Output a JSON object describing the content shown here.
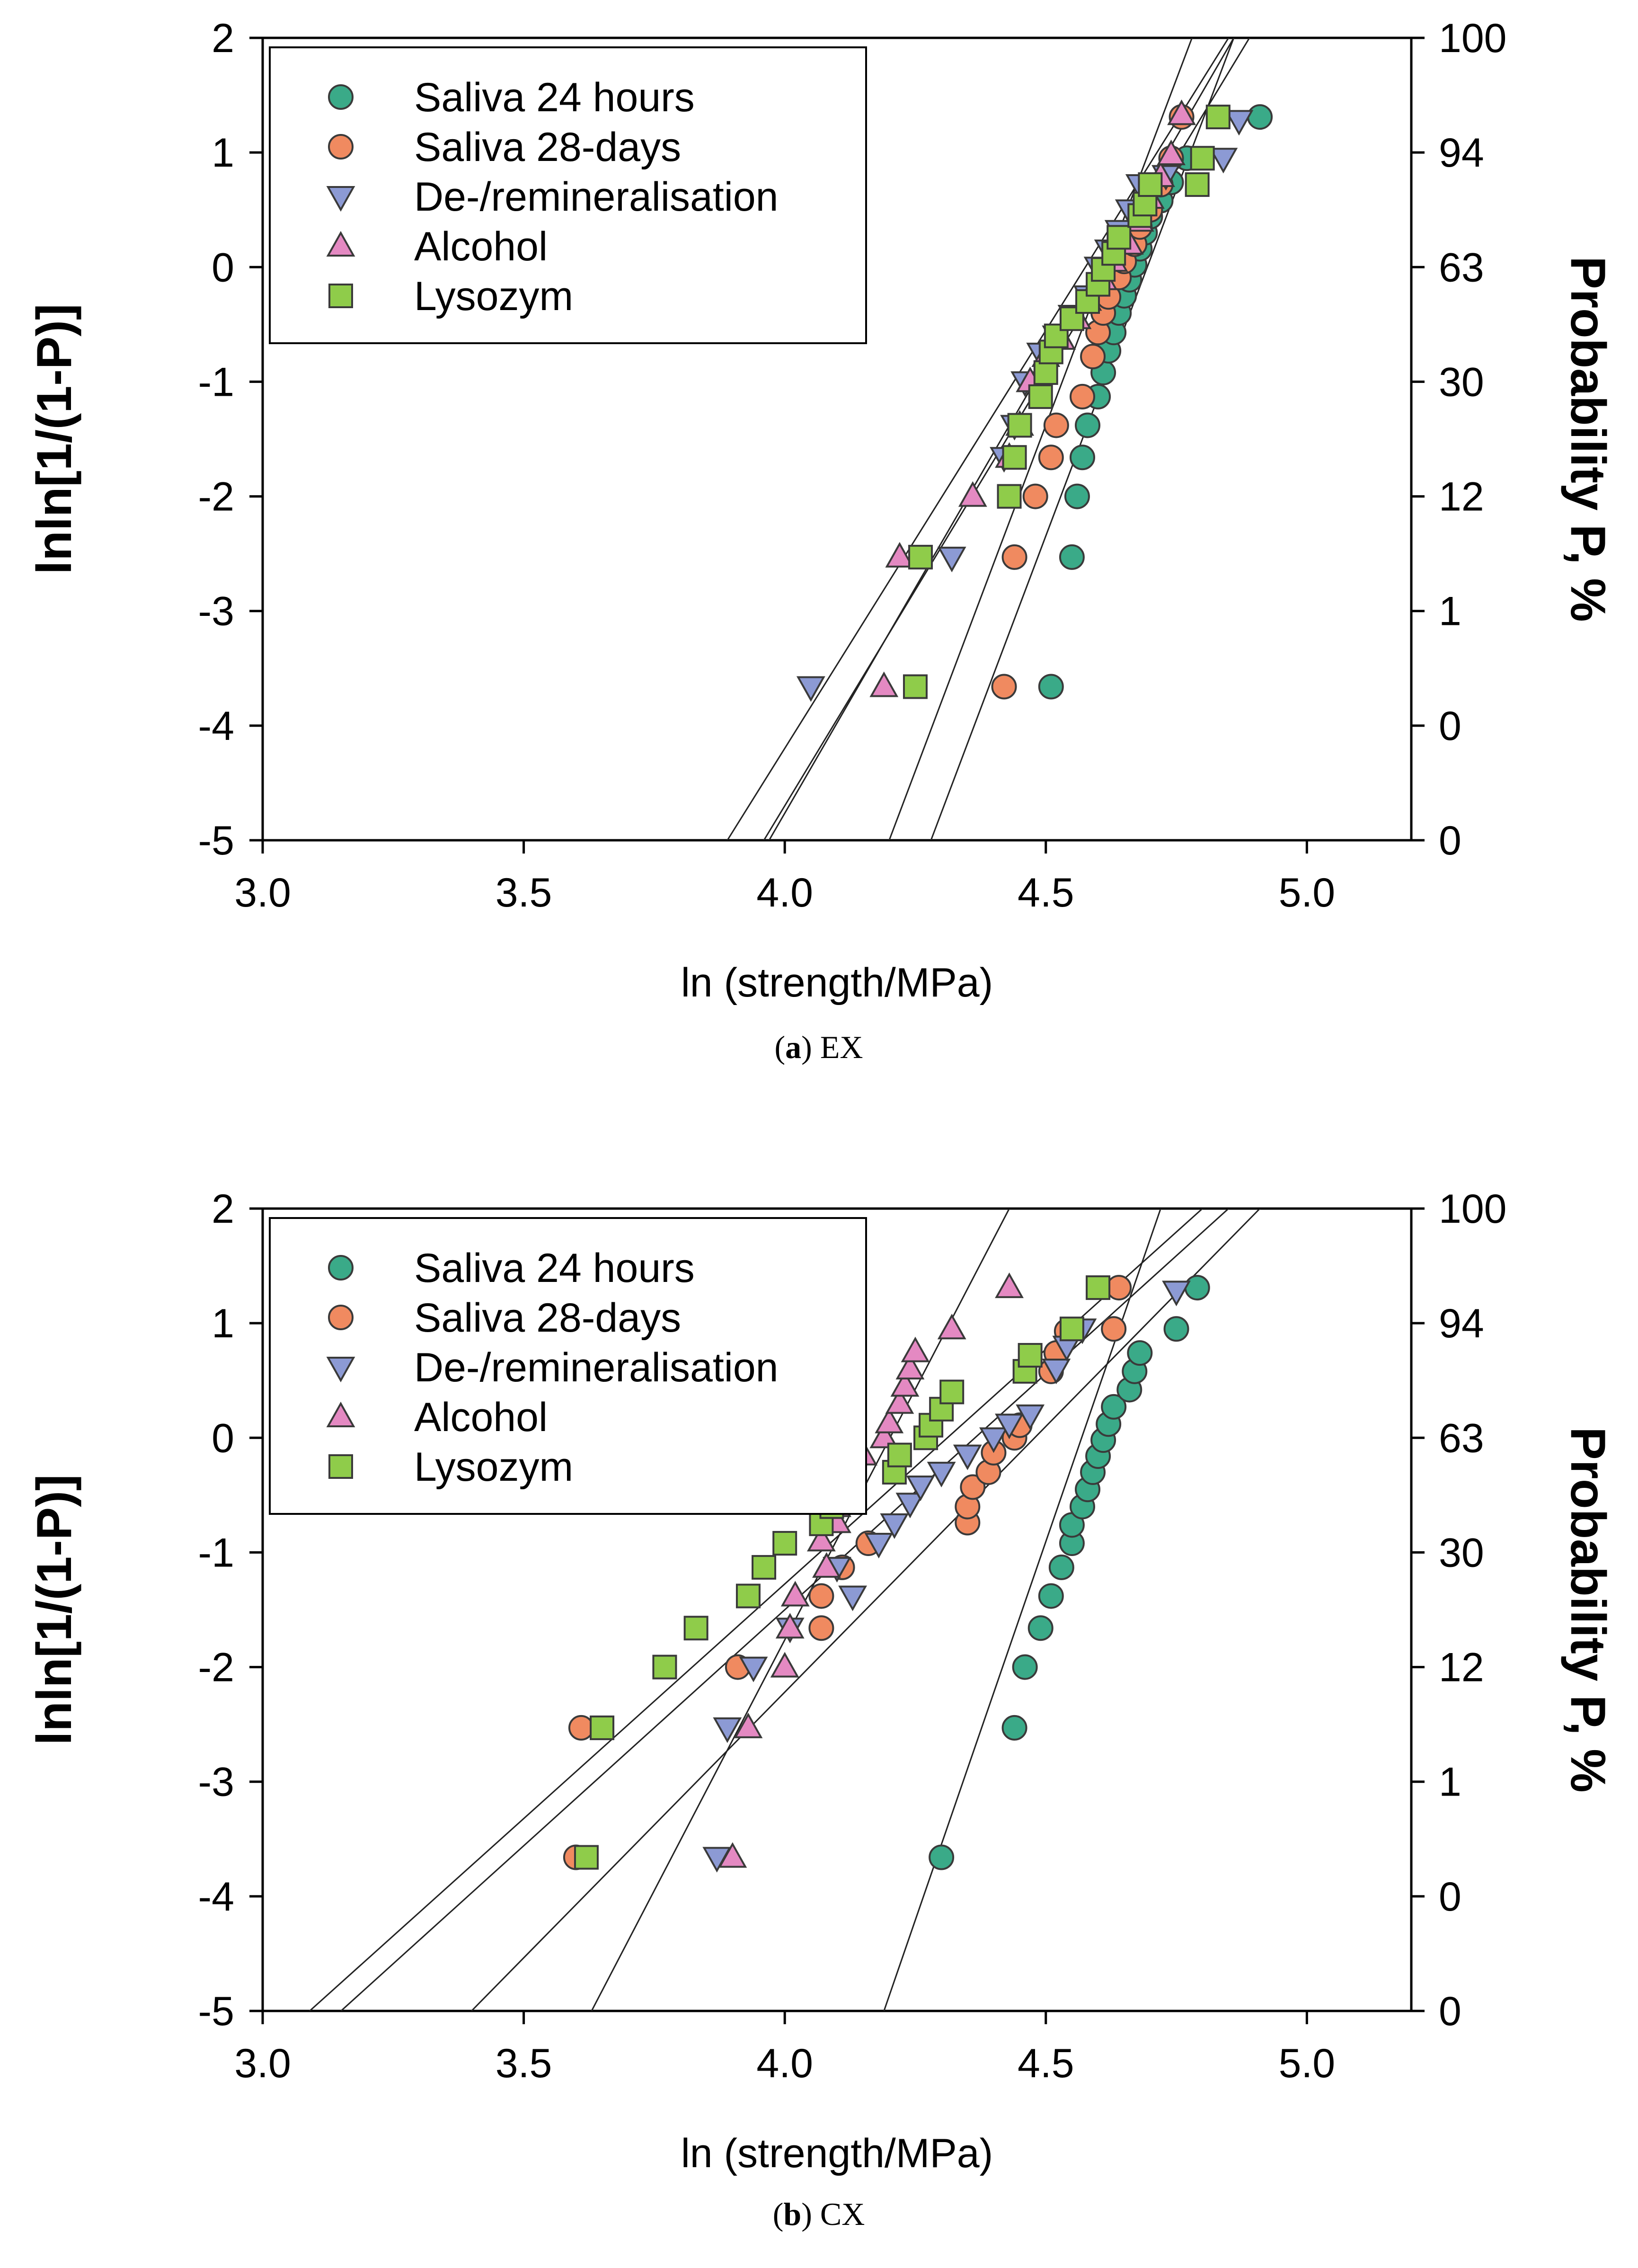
{
  "chart_data": [
    {
      "type": "scatter",
      "caption_letter": "a",
      "caption_text": "EX",
      "xlabel": "ln (strength/MPa)",
      "ylabel": "lnln[1/(1-P)]",
      "ylabel_right": "Probability P, %",
      "xlim": [
        3.0,
        5.2
      ],
      "ylim": [
        -5,
        2
      ],
      "xticks": [
        "3.0",
        "3.5",
        "4.0",
        "4.5",
        "5.0"
      ],
      "yticks": [
        "-5",
        "-4",
        "-3",
        "-2",
        "-1",
        "0",
        "1",
        "2"
      ],
      "right_ticks": [
        "0",
        "0",
        "1",
        "12",
        "30",
        "63",
        "94",
        "100"
      ],
      "legend_position": "top-left",
      "series": [
        {
          "name": "Saliva 24 hours",
          "marker": "circle",
          "color": "#3aaa88",
          "points": [
            [
              4.51,
              -3.66
            ],
            [
              4.55,
              -2.53
            ],
            [
              4.56,
              -2.0
            ],
            [
              4.57,
              -1.66
            ],
            [
              4.58,
              -1.38
            ],
            [
              4.6,
              -1.13
            ],
            [
              4.61,
              -0.92
            ],
            [
              4.62,
              -0.73
            ],
            [
              4.63,
              -0.57
            ],
            [
              4.64,
              -0.4
            ],
            [
              4.65,
              -0.25
            ],
            [
              4.66,
              -0.11
            ],
            [
              4.67,
              0.02
            ],
            [
              4.68,
              0.16
            ],
            [
              4.69,
              0.3
            ],
            [
              4.7,
              0.44
            ],
            [
              4.72,
              0.58
            ],
            [
              4.74,
              0.74
            ],
            [
              4.77,
              0.95
            ],
            [
              4.91,
              1.31
            ]
          ],
          "fit": [
            [
              4.28,
              -5.0
            ],
            [
              4.86,
              2.0
            ]
          ]
        },
        {
          "name": "Saliva 28-days",
          "marker": "circle",
          "color": "#f08a60",
          "points": [
            [
              4.42,
              -3.66
            ],
            [
              4.44,
              -2.53
            ],
            [
              4.48,
              -2.0
            ],
            [
              4.51,
              -1.66
            ],
            [
              4.52,
              -1.38
            ],
            [
              4.57,
              -1.13
            ],
            [
              4.59,
              -0.78
            ],
            [
              4.6,
              -0.57
            ],
            [
              4.61,
              -0.4
            ],
            [
              4.62,
              -0.26
            ],
            [
              4.64,
              -0.09
            ],
            [
              4.65,
              0.05
            ],
            [
              4.67,
              0.2
            ],
            [
              4.68,
              0.35
            ],
            [
              4.7,
              0.5
            ],
            [
              4.72,
              0.72
            ],
            [
              4.74,
              0.95
            ],
            [
              4.76,
              1.31
            ]
          ],
          "fit": [
            [
              4.2,
              -5.0
            ],
            [
              4.78,
              2.0
            ]
          ]
        },
        {
          "name": "De-/remineralisation",
          "marker": "triangle-down",
          "color": "#8c9ad4",
          "points": [
            [
              4.05,
              -3.66
            ],
            [
              4.32,
              -2.53
            ],
            [
              4.42,
              -1.66
            ],
            [
              4.44,
              -1.38
            ],
            [
              4.46,
              -1.0
            ],
            [
              4.49,
              -0.75
            ],
            [
              4.52,
              -0.6
            ],
            [
              4.55,
              -0.42
            ],
            [
              4.58,
              -0.25
            ],
            [
              4.6,
              0.0
            ],
            [
              4.62,
              0.15
            ],
            [
              4.64,
              0.32
            ],
            [
              4.66,
              0.5
            ],
            [
              4.68,
              0.72
            ],
            [
              4.73,
              0.8
            ],
            [
              4.84,
              0.95
            ],
            [
              4.87,
              1.28
            ]
          ],
          "fit": [
            [
              3.96,
              -5.0
            ],
            [
              4.89,
              2.0
            ]
          ]
        },
        {
          "name": "Alcohol",
          "marker": "triangle-up",
          "color": "#e489c2",
          "points": [
            [
              4.19,
              -3.66
            ],
            [
              4.22,
              -2.53
            ],
            [
              4.36,
              -2.0
            ],
            [
              4.43,
              -1.66
            ],
            [
              4.45,
              -1.38
            ],
            [
              4.47,
              -1.0
            ],
            [
              4.5,
              -0.78
            ],
            [
              4.53,
              -0.63
            ],
            [
              4.56,
              -0.45
            ],
            [
              4.58,
              -0.29
            ],
            [
              4.61,
              -0.11
            ],
            [
              4.63,
              0.05
            ],
            [
              4.66,
              0.2
            ],
            [
              4.68,
              0.4
            ],
            [
              4.7,
              0.6
            ],
            [
              4.72,
              0.79
            ],
            [
              4.74,
              0.98
            ],
            [
              4.76,
              1.33
            ]
          ],
          "fit": [
            [
              3.89,
              -5.0
            ],
            [
              4.85,
              2.0
            ]
          ]
        },
        {
          "name": "Lysozym",
          "marker": "square",
          "color": "#8fcc4a",
          "points": [
            [
              4.25,
              -3.66
            ],
            [
              4.26,
              -2.53
            ],
            [
              4.43,
              -2.0
            ],
            [
              4.44,
              -1.66
            ],
            [
              4.45,
              -1.38
            ],
            [
              4.49,
              -1.13
            ],
            [
              4.5,
              -0.92
            ],
            [
              4.51,
              -0.74
            ],
            [
              4.52,
              -0.6
            ],
            [
              4.55,
              -0.45
            ],
            [
              4.58,
              -0.3
            ],
            [
              4.6,
              -0.15
            ],
            [
              4.61,
              -0.02
            ],
            [
              4.63,
              0.12
            ],
            [
              4.64,
              0.26
            ],
            [
              4.68,
              0.45
            ],
            [
              4.69,
              0.55
            ],
            [
              4.7,
              0.72
            ],
            [
              4.79,
              0.72
            ],
            [
              4.8,
              0.95
            ],
            [
              4.83,
              1.31
            ]
          ],
          "fit": [
            [
              3.97,
              -5.0
            ],
            [
              4.86,
              2.0
            ]
          ]
        }
      ]
    },
    {
      "type": "scatter",
      "caption_letter": "b",
      "caption_text": "CX",
      "xlabel": "ln (strength/MPa)",
      "ylabel": "lnln[1/(1-P)]",
      "ylabel_right": "Probability P, %",
      "xlim": [
        3.0,
        5.2
      ],
      "ylim": [
        -5,
        2
      ],
      "xticks": [
        "3.0",
        "3.5",
        "4.0",
        "4.5",
        "5.0"
      ],
      "yticks": [
        "-5",
        "-4",
        "-3",
        "-2",
        "-1",
        "0",
        "1",
        "2"
      ],
      "right_ticks": [
        "0",
        "0",
        "1",
        "12",
        "30",
        "63",
        "94",
        "100"
      ],
      "legend_position": "top-left",
      "series": [
        {
          "name": "Saliva 24 hours",
          "marker": "circle",
          "color": "#3aaa88",
          "points": [
            [
              4.3,
              -3.66
            ],
            [
              4.44,
              -2.53
            ],
            [
              4.46,
              -2.0
            ],
            [
              4.49,
              -1.66
            ],
            [
              4.51,
              -1.38
            ],
            [
              4.53,
              -1.13
            ],
            [
              4.55,
              -0.92
            ],
            [
              4.55,
              -0.76
            ],
            [
              4.57,
              -0.6
            ],
            [
              4.58,
              -0.45
            ],
            [
              4.59,
              -0.3
            ],
            [
              4.6,
              -0.16
            ],
            [
              4.61,
              -0.02
            ],
            [
              4.62,
              0.12
            ],
            [
              4.63,
              0.27
            ],
            [
              4.66,
              0.42
            ],
            [
              4.67,
              0.58
            ],
            [
              4.68,
              0.74
            ],
            [
              4.75,
              0.95
            ],
            [
              4.79,
              1.31
            ]
          ],
          "fit": [
            [
              4.19,
              -5.0
            ],
            [
              4.72,
              2.0
            ]
          ]
        },
        {
          "name": "Saliva 28-days",
          "marker": "circle",
          "color": "#f08a60",
          "points": [
            [
              3.6,
              -3.66
            ],
            [
              3.61,
              -2.53
            ],
            [
              3.91,
              -2.0
            ],
            [
              4.07,
              -1.66
            ],
            [
              4.07,
              -1.38
            ],
            [
              4.11,
              -1.13
            ],
            [
              4.16,
              -0.92
            ],
            [
              4.35,
              -0.74
            ],
            [
              4.35,
              -0.6
            ],
            [
              4.36,
              -0.43
            ],
            [
              4.39,
              -0.3
            ],
            [
              4.4,
              -0.13
            ],
            [
              4.44,
              0.0
            ],
            [
              4.45,
              0.11
            ],
            [
              4.51,
              0.58
            ],
            [
              4.52,
              0.74
            ],
            [
              4.54,
              0.93
            ],
            [
              4.63,
              0.95
            ],
            [
              4.64,
              1.31
            ]
          ],
          "fit": [
            [
              3.15,
              -5.0
            ],
            [
              4.85,
              2.0
            ]
          ]
        },
        {
          "name": "De-/remineralisation",
          "marker": "triangle-down",
          "color": "#8c9ad4",
          "points": [
            [
              3.87,
              -3.66
            ],
            [
              3.89,
              -2.53
            ],
            [
              3.94,
              -2.0
            ],
            [
              4.01,
              -1.66
            ],
            [
              4.13,
              -1.38
            ],
            [
              4.1,
              -1.13
            ],
            [
              4.18,
              -0.92
            ],
            [
              4.21,
              -0.75
            ],
            [
              4.24,
              -0.57
            ],
            [
              4.26,
              -0.42
            ],
            [
              4.3,
              -0.3
            ],
            [
              4.35,
              -0.15
            ],
            [
              4.4,
              0.0
            ],
            [
              4.43,
              0.12
            ],
            [
              4.47,
              0.2
            ],
            [
              4.52,
              0.6
            ],
            [
              4.54,
              0.8
            ],
            [
              4.57,
              0.95
            ],
            [
              4.75,
              1.28
            ]
          ],
          "fit": [
            [
              3.4,
              -5.0
            ],
            [
              4.91,
              2.0
            ]
          ]
        },
        {
          "name": "Alcohol",
          "marker": "triangle-up",
          "color": "#e489c2",
          "points": [
            [
              3.9,
              -3.66
            ],
            [
              3.93,
              -2.53
            ],
            [
              4.0,
              -2.0
            ],
            [
              4.01,
              -1.66
            ],
            [
              4.02,
              -1.38
            ],
            [
              4.08,
              -1.13
            ],
            [
              4.07,
              -0.9
            ],
            [
              4.1,
              -0.74
            ],
            [
              4.1,
              -0.6
            ],
            [
              4.15,
              -0.15
            ],
            [
              4.19,
              0.0
            ],
            [
              4.2,
              0.13
            ],
            [
              4.22,
              0.3
            ],
            [
              4.23,
              0.45
            ],
            [
              4.24,
              0.6
            ],
            [
              4.25,
              0.75
            ],
            [
              4.32,
              0.95
            ],
            [
              4.43,
              1.31
            ]
          ],
          "fit": [
            [
              3.63,
              -5.0
            ],
            [
              4.43,
              2.0
            ]
          ]
        },
        {
          "name": "Lysozym",
          "marker": "square",
          "color": "#8fcc4a",
          "points": [
            [
              3.62,
              -3.66
            ],
            [
              3.65,
              -2.53
            ],
            [
              3.77,
              -2.0
            ],
            [
              3.83,
              -1.66
            ],
            [
              3.93,
              -1.38
            ],
            [
              3.96,
              -1.13
            ],
            [
              4.0,
              -0.92
            ],
            [
              4.07,
              -0.75
            ],
            [
              4.09,
              -0.6
            ],
            [
              4.21,
              -0.3
            ],
            [
              4.22,
              -0.15
            ],
            [
              4.27,
              0.0
            ],
            [
              4.28,
              0.11
            ],
            [
              4.3,
              0.25
            ],
            [
              4.32,
              0.4
            ],
            [
              4.46,
              0.58
            ],
            [
              4.47,
              0.72
            ],
            [
              4.55,
              0.95
            ],
            [
              4.6,
              1.31
            ]
          ],
          "fit": [
            [
              3.09,
              -5.0
            ],
            [
              4.8,
              2.0
            ]
          ]
        }
      ]
    }
  ]
}
